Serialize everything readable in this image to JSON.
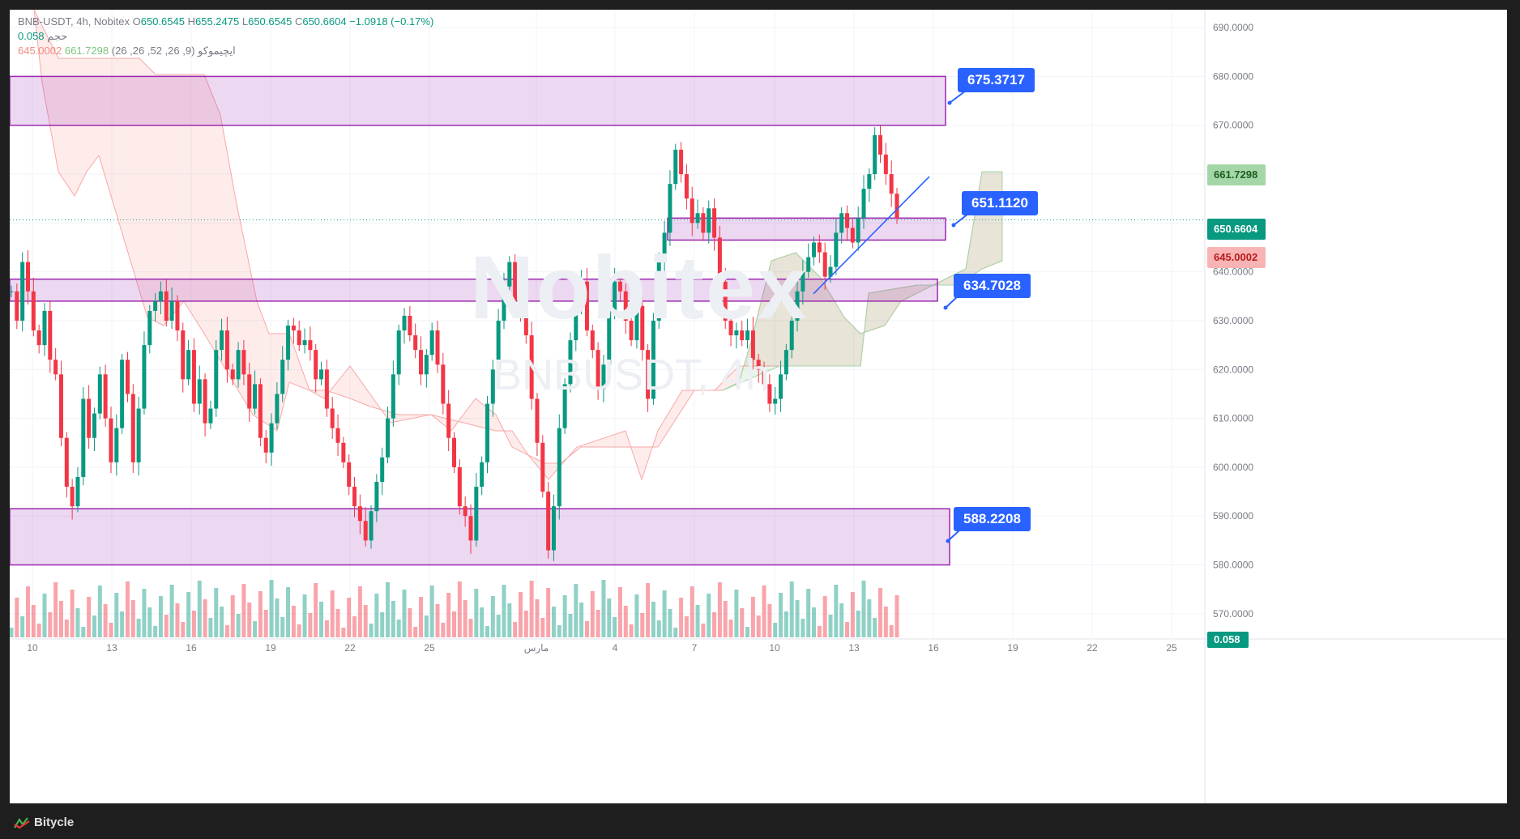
{
  "legend": {
    "title": "BNB-USDT, 4h, Nobitex",
    "open": "650.6545",
    "high": "655.2475",
    "low": "650.6545",
    "close": "650.6604",
    "change": "−1.0918 (−0.17%)",
    "volume_label": "حجم",
    "volume_value": "0.058",
    "ichimoku_label": "ایچیموکو (9, 26, 52, 26, 26)",
    "ichimoku_a": "661.7298",
    "ichimoku_b": "645.0002"
  },
  "watermark": {
    "main": "Nobitex",
    "sub": "BNBUSDT, 4h"
  },
  "price_axis": [
    "690.0000",
    "680.0000",
    "670.0000",
    "660.0000",
    "650.0000",
    "640.0000",
    "630.0000",
    "620.0000",
    "610.0000",
    "600.0000",
    "590.0000",
    "580.0000",
    "570.0000"
  ],
  "time_axis": [
    "10",
    "13",
    "16",
    "19",
    "22",
    "25",
    "مارس",
    "4",
    "7",
    "10",
    "13",
    "16",
    "19",
    "22",
    "25"
  ],
  "price_tags": {
    "span_a": "661.7298",
    "last": "650.6604",
    "span_b": "645.0002",
    "volume": "0.058"
  },
  "callouts": [
    "675.3717",
    "651.1120",
    "634.7028",
    "588.2208"
  ],
  "footer": {
    "brand": "Bitycle"
  },
  "colors": {
    "up": "#089981",
    "down": "#f23645",
    "zone": "#9c27b0",
    "callout": "#2962ff",
    "trendline": "#2962ff"
  },
  "chart_data": {
    "type": "candlestick",
    "symbol": "BNB-USDT",
    "interval": "4h",
    "ylim": [
      566,
      692
    ],
    "zones": [
      {
        "label": "675.3717",
        "from": 670,
        "to": 680
      },
      {
        "label": "651.1120",
        "from": 646.5,
        "to": 651
      },
      {
        "label": "634.7028",
        "from": 634,
        "to": 638.5
      },
      {
        "label": "588.2208",
        "from": 580,
        "to": 591.5
      }
    ],
    "close_series": [
      636,
      630,
      642,
      636,
      628,
      625,
      632,
      622,
      619,
      606,
      596,
      592,
      598,
      614,
      606,
      611,
      619,
      610,
      601,
      608,
      622,
      615,
      601,
      612,
      625,
      632,
      634,
      636,
      630,
      634,
      628,
      618,
      624,
      613,
      618,
      609,
      612,
      624,
      628,
      620,
      618,
      624,
      619,
      612,
      617,
      606,
      603,
      609,
      615,
      622,
      629,
      628,
      625,
      626,
      624,
      618,
      620,
      612,
      608,
      605,
      601,
      596,
      592,
      589,
      585,
      591,
      597,
      602,
      610,
      619,
      628,
      631,
      627,
      624,
      619,
      623,
      628,
      621,
      613,
      606,
      600,
      592,
      590,
      585,
      596,
      601,
      613,
      620,
      630,
      637,
      642,
      634,
      631,
      627,
      614,
      605,
      595,
      583,
      592,
      608,
      617,
      626,
      634,
      638,
      628,
      624,
      616,
      621,
      632,
      638,
      636,
      630,
      626,
      633,
      624,
      614,
      630,
      642,
      648,
      658,
      665,
      660,
      655,
      650,
      652,
      648,
      653,
      647,
      638,
      630,
      627,
      628,
      626,
      628,
      622,
      620,
      617,
      613,
      614,
      619,
      624,
      630,
      636,
      640,
      643,
      646,
      644,
      639,
      641,
      648,
      652,
      649,
      646,
      651,
      657,
      660,
      668,
      664,
      660,
      656,
      651
    ]
  }
}
